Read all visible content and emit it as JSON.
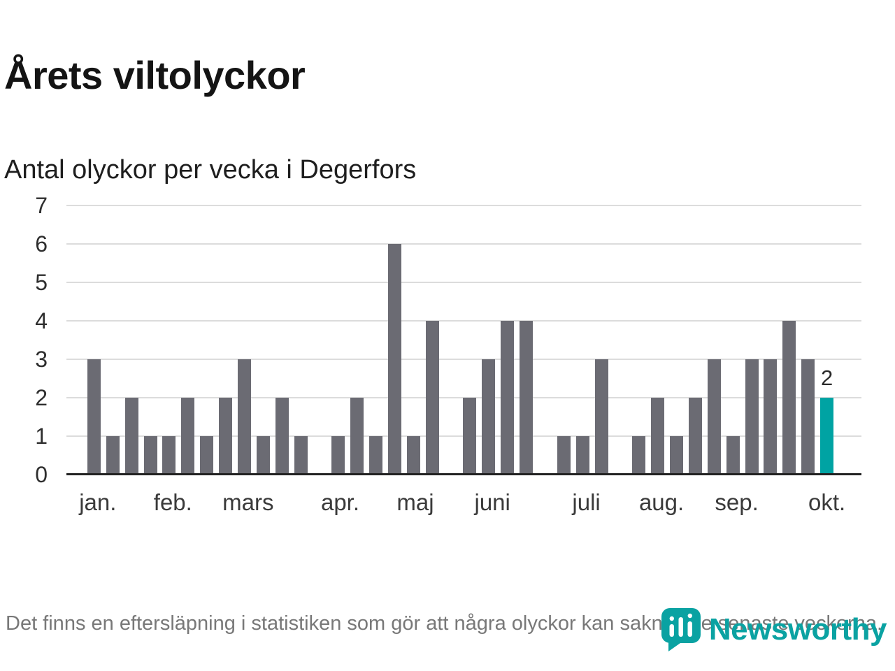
{
  "header": {
    "title": "Årets viltolyckor",
    "subtitle": "Antal olyckor per vecka i Degerfors"
  },
  "footnote": "Det finns en eftersläpning i statistiken som gör att några olyckor kan saknas de senaste veckorna.",
  "logo": {
    "name": "Newsworthy"
  },
  "colors": {
    "bar": "#6b6b73",
    "highlight": "#00a3a3",
    "grid": "#dcdcdc",
    "axis": "#222222",
    "brand": "#0aa2a2"
  },
  "chart_data": {
    "type": "bar",
    "title": "Årets viltolyckor",
    "subtitle": "Antal olyckor per vecka i Degerfors",
    "x_unit": "vecka (januari–oktober)",
    "ylabel": "Antal olyckor",
    "ylim": [
      0,
      7
    ],
    "yticks": [
      0,
      1,
      2,
      3,
      4,
      5,
      6,
      7
    ],
    "grid": true,
    "values": [
      3,
      1,
      2,
      1,
      1,
      2,
      1,
      2,
      3,
      1,
      2,
      1,
      0,
      1,
      2,
      1,
      6,
      1,
      4,
      0,
      2,
      3,
      4,
      4,
      0,
      1,
      1,
      3,
      0,
      1,
      2,
      1,
      2,
      3,
      1,
      3,
      3,
      4,
      3,
      2
    ],
    "highlight_index": 39,
    "bar_labels": [
      {
        "index": 39,
        "text": "2"
      }
    ],
    "x_ticks": [
      {
        "label": "jan.",
        "week": 1.2
      },
      {
        "label": "feb.",
        "week": 5.2
      },
      {
        "label": "mars",
        "week": 9.2
      },
      {
        "label": "apr.",
        "week": 14.1
      },
      {
        "label": "maj",
        "week": 18.1
      },
      {
        "label": "juni",
        "week": 22.2
      },
      {
        "label": "juli",
        "week": 27.2
      },
      {
        "label": "aug.",
        "week": 31.2
      },
      {
        "label": "sep.",
        "week": 35.2
      },
      {
        "label": "okt.",
        "week": 40.0
      }
    ]
  }
}
